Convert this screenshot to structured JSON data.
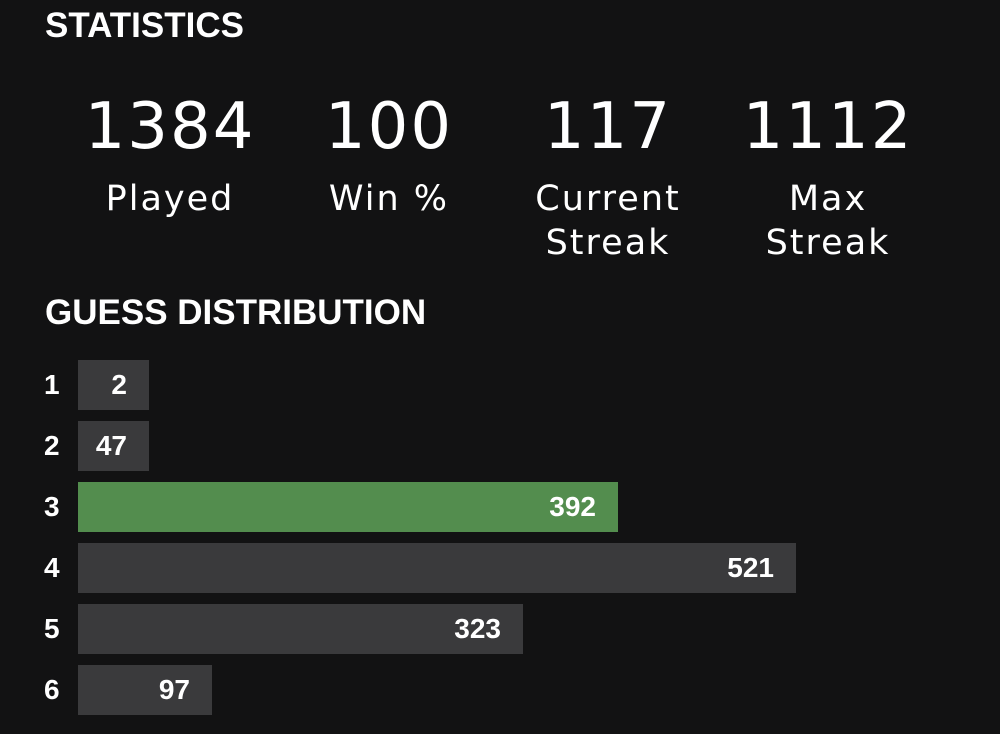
{
  "statistics": {
    "heading": "STATISTICS",
    "items": [
      {
        "value": "1384",
        "label": "Played"
      },
      {
        "value": "100",
        "label": "Win %"
      },
      {
        "value": "117",
        "label": "Current\nStreak"
      },
      {
        "value": "1112",
        "label": "Max\nStreak"
      }
    ]
  },
  "guess_distribution": {
    "heading": "GUESS DISTRIBUTION",
    "max_count": 521,
    "rows": [
      {
        "guess": "1",
        "count": 2,
        "count_label": "2",
        "highlighted": false
      },
      {
        "guess": "2",
        "count": 47,
        "count_label": "47",
        "highlighted": false
      },
      {
        "guess": "3",
        "count": 392,
        "count_label": "392",
        "highlighted": true
      },
      {
        "guess": "4",
        "count": 521,
        "count_label": "521",
        "highlighted": false
      },
      {
        "guess": "5",
        "count": 323,
        "count_label": "323",
        "highlighted": false
      },
      {
        "guess": "6",
        "count": 97,
        "count_label": "97",
        "highlighted": false
      }
    ]
  },
  "colors": {
    "background": "#121213",
    "bar_default": "#3a3a3c",
    "bar_highlight": "#538d4e",
    "text": "#ffffff"
  }
}
